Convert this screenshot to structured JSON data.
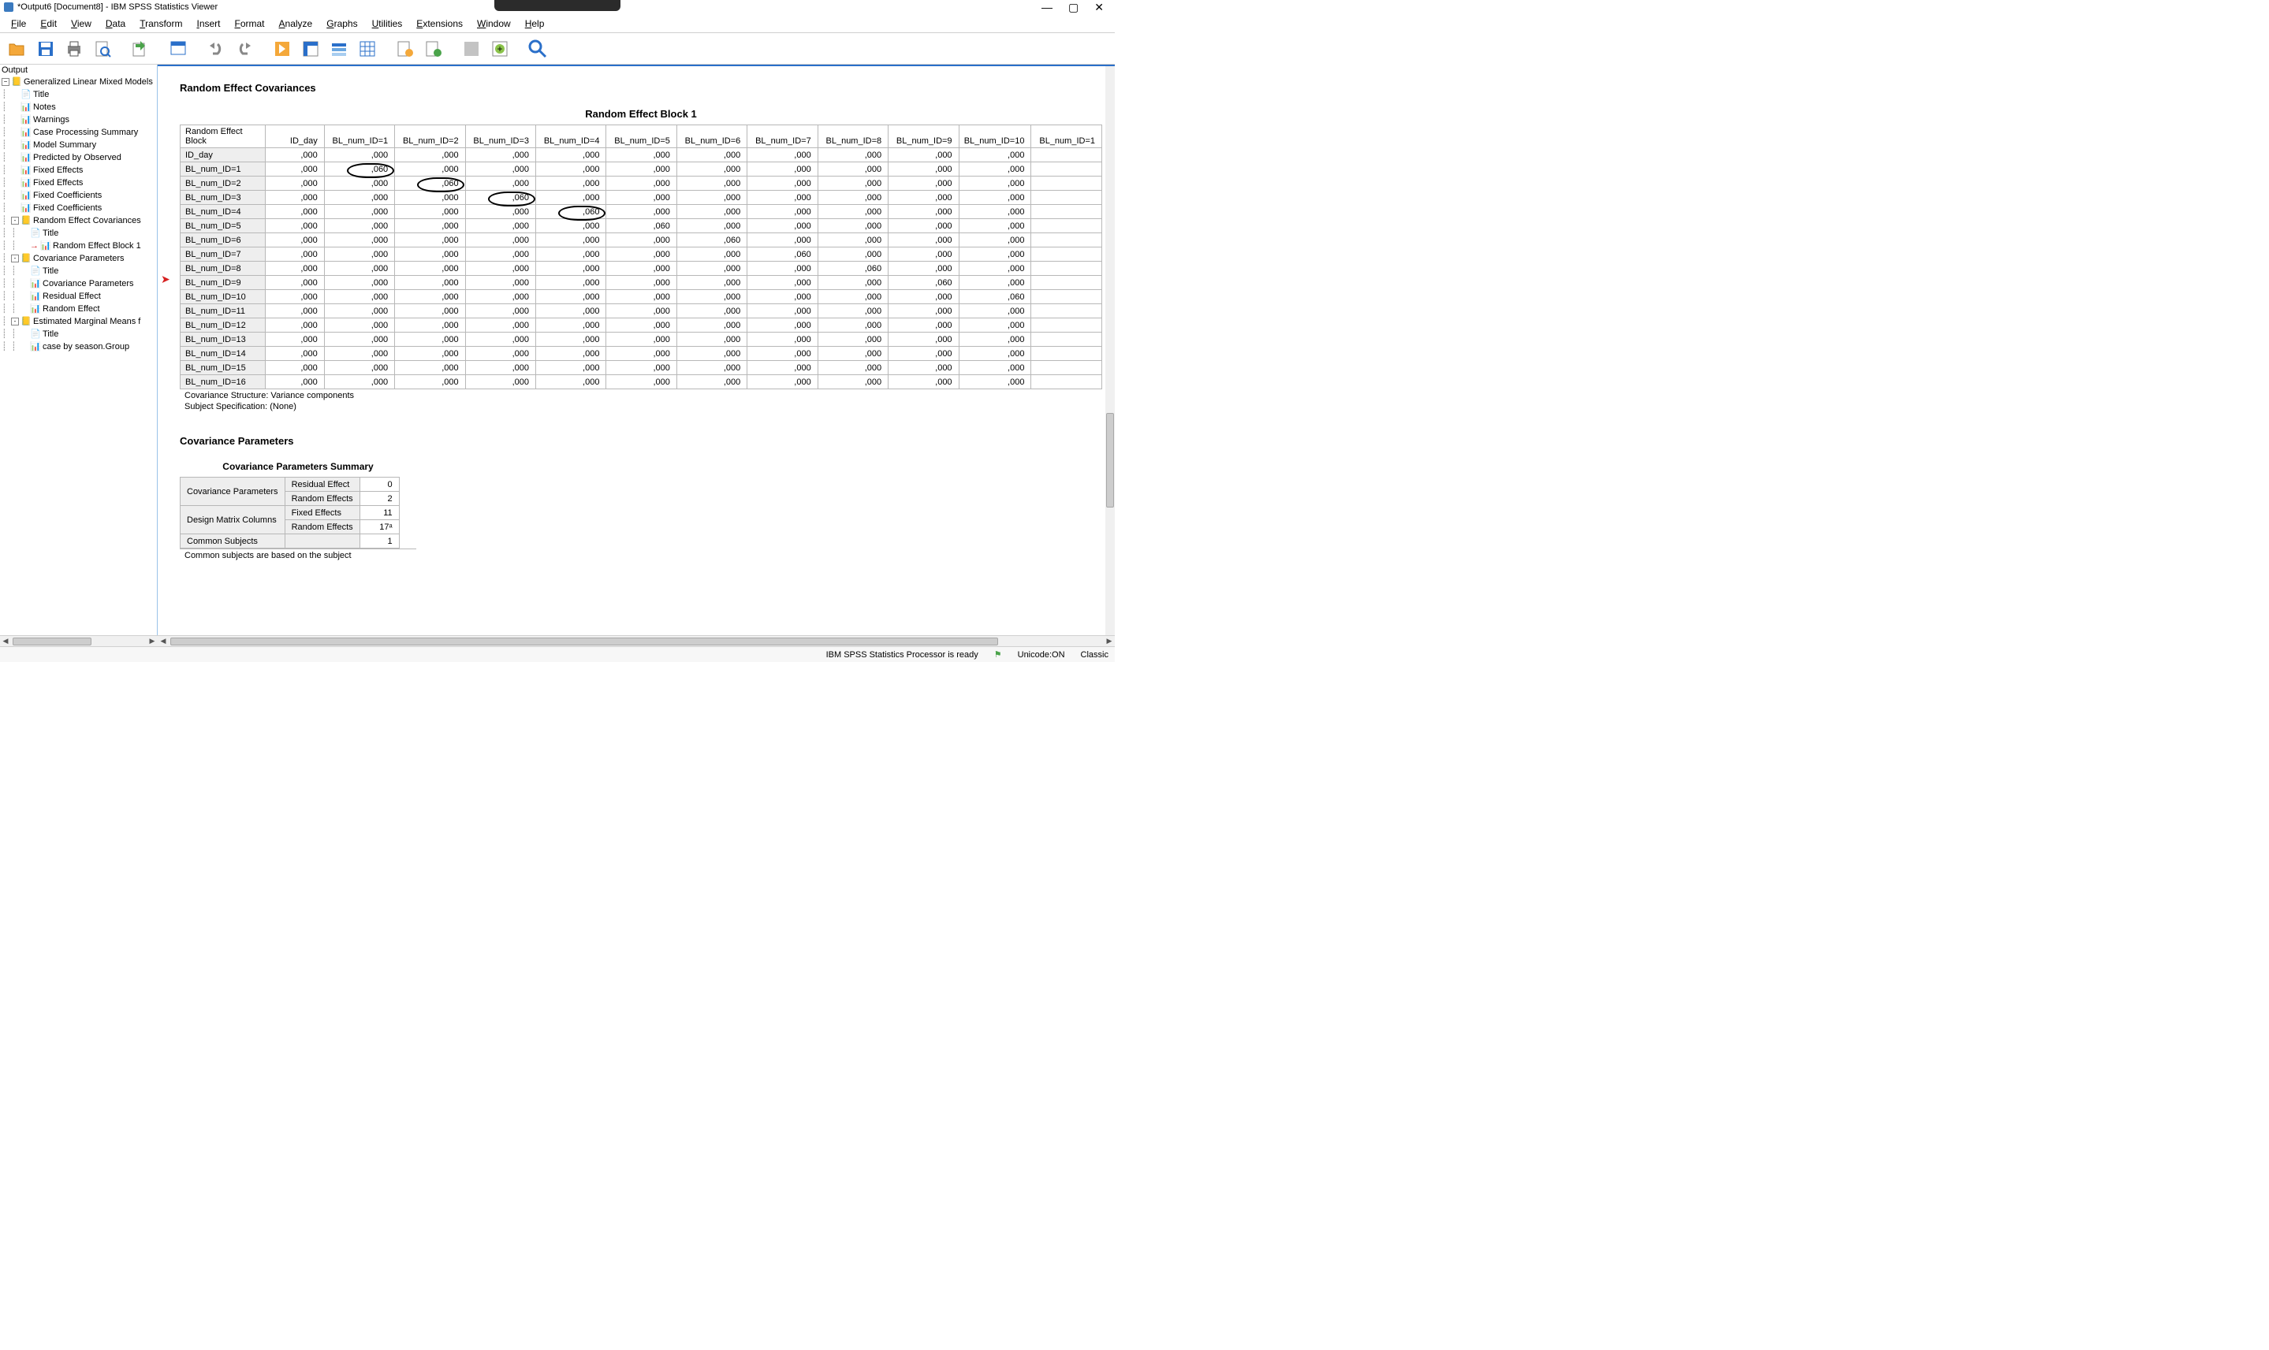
{
  "window": {
    "title": "*Output6 [Document8] - IBM SPSS Statistics Viewer"
  },
  "menus": [
    "File",
    "Edit",
    "View",
    "Data",
    "Transform",
    "Insert",
    "Format",
    "Analyze",
    "Graphs",
    "Utilities",
    "Extensions",
    "Window",
    "Help"
  ],
  "outline": {
    "header": "Output",
    "root": "Generalized Linear Mixed Models",
    "items": [
      {
        "indent": 1,
        "label": "Title",
        "icon": "doc"
      },
      {
        "indent": 1,
        "label": "Notes",
        "icon": "tbl"
      },
      {
        "indent": 1,
        "label": "Warnings",
        "icon": "tbl"
      },
      {
        "indent": 1,
        "label": "Case Processing Summary",
        "icon": "tbl"
      },
      {
        "indent": 1,
        "label": "Model Summary",
        "icon": "tbl"
      },
      {
        "indent": 1,
        "label": "Predicted by Observed",
        "icon": "tbl"
      },
      {
        "indent": 1,
        "label": "Fixed Effects",
        "icon": "tbl"
      },
      {
        "indent": 1,
        "label": "Fixed Effects",
        "icon": "tbl"
      },
      {
        "indent": 1,
        "label": "Fixed Coefficients",
        "icon": "tbl"
      },
      {
        "indent": 1,
        "label": "Fixed Coefficients",
        "icon": "tbl"
      },
      {
        "indent": 1,
        "label": "Random Effect Covariances",
        "icon": "folder",
        "toggle": "-"
      },
      {
        "indent": 2,
        "label": "Title",
        "icon": "doc"
      },
      {
        "indent": 2,
        "label": "Random Effect Block 1",
        "icon": "tbl",
        "marker": true
      },
      {
        "indent": 1,
        "label": "Covariance Parameters",
        "icon": "folder",
        "toggle": "-"
      },
      {
        "indent": 2,
        "label": "Title",
        "icon": "doc"
      },
      {
        "indent": 2,
        "label": "Covariance Parameters",
        "icon": "tbl"
      },
      {
        "indent": 2,
        "label": "Residual Effect",
        "icon": "tbl"
      },
      {
        "indent": 2,
        "label": "Random Effect",
        "icon": "tbl"
      },
      {
        "indent": 1,
        "label": "Estimated Marginal Means f",
        "icon": "folder",
        "toggle": "-"
      },
      {
        "indent": 2,
        "label": "Title",
        "icon": "doc"
      },
      {
        "indent": 2,
        "label": "case by season.Group",
        "icon": "tbl"
      }
    ]
  },
  "content": {
    "section1_title": "Random Effect Covariances",
    "block_title": "Random Effect Block 1",
    "table": {
      "corner": "Random Effect Block",
      "columns": [
        "ID_day",
        "BL_num_ID=1",
        "BL_num_ID=2",
        "BL_num_ID=3",
        "BL_num_ID=4",
        "BL_num_ID=5",
        "BL_num_ID=6",
        "BL_num_ID=7",
        "BL_num_ID=8",
        "BL_num_ID=9",
        "BL_num_ID=10",
        "BL_num_ID=1"
      ],
      "rows": [
        {
          "label": "ID_day",
          "vals": [
            ",000",
            ",000",
            ",000",
            ",000",
            ",000",
            ",000",
            ",000",
            ",000",
            ",000",
            ",000",
            ",000",
            ""
          ]
        },
        {
          "label": "BL_num_ID=1",
          "vals": [
            ",000",
            ",060",
            ",000",
            ",000",
            ",000",
            ",000",
            ",000",
            ",000",
            ",000",
            ",000",
            ",000",
            ""
          ],
          "circle": 1
        },
        {
          "label": "BL_num_ID=2",
          "vals": [
            ",000",
            ",000",
            ",060",
            ",000",
            ",000",
            ",000",
            ",000",
            ",000",
            ",000",
            ",000",
            ",000",
            ""
          ],
          "circle": 2
        },
        {
          "label": "BL_num_ID=3",
          "vals": [
            ",000",
            ",000",
            ",000",
            ",060",
            ",000",
            ",000",
            ",000",
            ",000",
            ",000",
            ",000",
            ",000",
            ""
          ],
          "circle": 3
        },
        {
          "label": "BL_num_ID=4",
          "vals": [
            ",000",
            ",000",
            ",000",
            ",000",
            ",060",
            ",000",
            ",000",
            ",000",
            ",000",
            ",000",
            ",000",
            ""
          ],
          "circle": 4
        },
        {
          "label": "BL_num_ID=5",
          "vals": [
            ",000",
            ",000",
            ",000",
            ",000",
            ",000",
            ",060",
            ",000",
            ",000",
            ",000",
            ",000",
            ",000",
            ""
          ]
        },
        {
          "label": "BL_num_ID=6",
          "vals": [
            ",000",
            ",000",
            ",000",
            ",000",
            ",000",
            ",000",
            ",060",
            ",000",
            ",000",
            ",000",
            ",000",
            ""
          ]
        },
        {
          "label": "BL_num_ID=7",
          "vals": [
            ",000",
            ",000",
            ",000",
            ",000",
            ",000",
            ",000",
            ",000",
            ",060",
            ",000",
            ",000",
            ",000",
            ""
          ]
        },
        {
          "label": "BL_num_ID=8",
          "vals": [
            ",000",
            ",000",
            ",000",
            ",000",
            ",000",
            ",000",
            ",000",
            ",000",
            ",060",
            ",000",
            ",000",
            ""
          ]
        },
        {
          "label": "BL_num_ID=9",
          "vals": [
            ",000",
            ",000",
            ",000",
            ",000",
            ",000",
            ",000",
            ",000",
            ",000",
            ",000",
            ",060",
            ",000",
            ""
          ]
        },
        {
          "label": "BL_num_ID=10",
          "vals": [
            ",000",
            ",000",
            ",000",
            ",000",
            ",000",
            ",000",
            ",000",
            ",000",
            ",000",
            ",000",
            ",060",
            ""
          ]
        },
        {
          "label": "BL_num_ID=11",
          "vals": [
            ",000",
            ",000",
            ",000",
            ",000",
            ",000",
            ",000",
            ",000",
            ",000",
            ",000",
            ",000",
            ",000",
            ""
          ]
        },
        {
          "label": "BL_num_ID=12",
          "vals": [
            ",000",
            ",000",
            ",000",
            ",000",
            ",000",
            ",000",
            ",000",
            ",000",
            ",000",
            ",000",
            ",000",
            ""
          ]
        },
        {
          "label": "BL_num_ID=13",
          "vals": [
            ",000",
            ",000",
            ",000",
            ",000",
            ",000",
            ",000",
            ",000",
            ",000",
            ",000",
            ",000",
            ",000",
            ""
          ]
        },
        {
          "label": "BL_num_ID=14",
          "vals": [
            ",000",
            ",000",
            ",000",
            ",000",
            ",000",
            ",000",
            ",000",
            ",000",
            ",000",
            ",000",
            ",000",
            ""
          ]
        },
        {
          "label": "BL_num_ID=15",
          "vals": [
            ",000",
            ",000",
            ",000",
            ",000",
            ",000",
            ",000",
            ",000",
            ",000",
            ",000",
            ",000",
            ",000",
            ""
          ]
        },
        {
          "label": "BL_num_ID=16",
          "vals": [
            ",000",
            ",000",
            ",000",
            ",000",
            ",000",
            ",000",
            ",000",
            ",000",
            ",000",
            ",000",
            ",000",
            ""
          ]
        }
      ],
      "footnote1": "Covariance Structure: Variance components",
      "footnote2": "Subject Specification: (None)"
    },
    "section2_title": "Covariance Parameters",
    "section2_subtitle": "Covariance Parameters Summary",
    "param_rows": [
      {
        "g": "Covariance Parameters",
        "l": "Residual Effect",
        "v": "0"
      },
      {
        "g": "",
        "l": "Random Effects",
        "v": "2"
      },
      {
        "g": "Design Matrix Columns",
        "l": "Fixed Effects",
        "v": "11"
      },
      {
        "g": "",
        "l": "Random Effects",
        "v": "17ᵃ"
      },
      {
        "g": "Common Subjects",
        "l": "",
        "v": "1"
      }
    ],
    "param_footnote": "Common subjects are based on the subject"
  },
  "status": {
    "ready": "IBM SPSS Statistics Processor is ready",
    "unicode": "Unicode:ON",
    "classic": "Classic"
  },
  "colors": {
    "border": "#b8b8b8",
    "rowhdr_bg": "#eeeeee",
    "accent": "#2a6fc9",
    "red": "#d62020"
  }
}
